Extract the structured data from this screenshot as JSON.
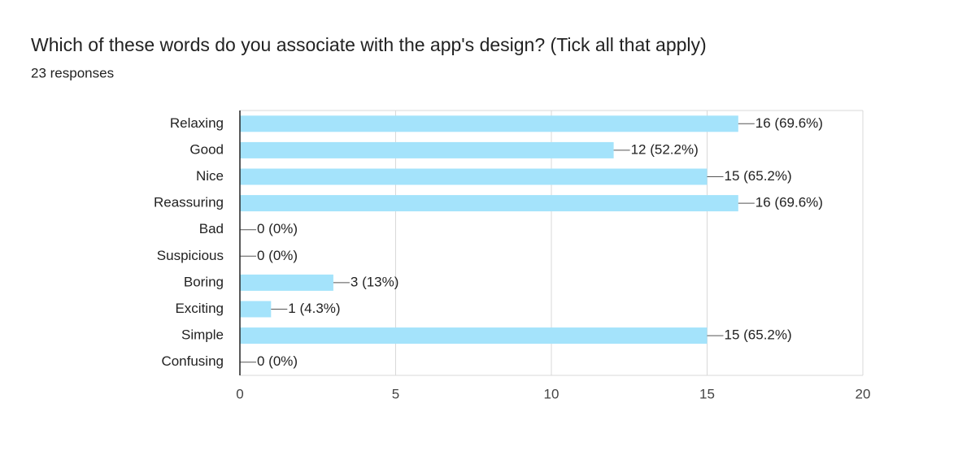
{
  "chart_data": {
    "type": "hbar",
    "title": "Which of these words do you associate with the app's design? (Tick all that apply)",
    "subtitle": "23 responses",
    "categories": [
      "Relaxing",
      "Good",
      "Nice",
      "Reassuring",
      "Bad",
      "Suspicious",
      "Boring",
      "Exciting",
      "Simple",
      "Confusing"
    ],
    "values": [
      16,
      12,
      15,
      16,
      0,
      0,
      3,
      1,
      15,
      0
    ],
    "value_labels": [
      "16 (69.6%)",
      "12 (52.2%)",
      "15 (65.2%)",
      "16 (69.6%)",
      "0 (0%)",
      "0 (0%)",
      "3 (13%)",
      "1 (4.3%)",
      "15 (65.2%)",
      "0 (0%)"
    ],
    "color": "#a4e3fb",
    "xlim": [
      0,
      20
    ],
    "xticks": [
      0,
      5,
      10,
      15,
      20
    ],
    "grid": true
  }
}
